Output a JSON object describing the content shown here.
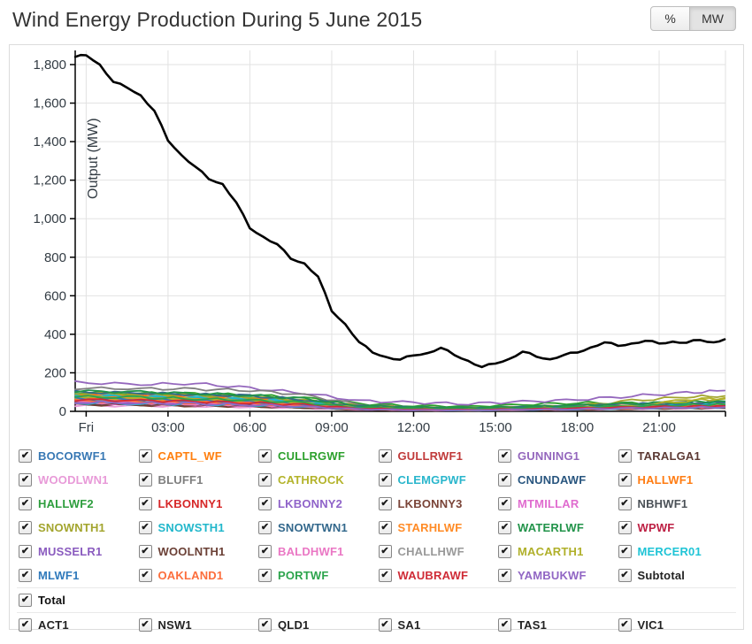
{
  "page": {
    "title": "Wind Energy Production During 5 June 2015"
  },
  "unit_toggle": {
    "percent_label": "%",
    "mw_label": "MW",
    "active": "MW"
  },
  "chart_data": {
    "type": "line",
    "title": "Wind Energy Production During 5 June 2015",
    "xlabel": "",
    "ylabel": "Output (MW)",
    "ylim": [
      0,
      1880
    ],
    "x_domain_hours": [
      -0.4,
      23.43
    ],
    "yticks": [
      0,
      200,
      400,
      600,
      800,
      1000,
      1200,
      1400,
      1600,
      1800
    ],
    "ytick_labels": [
      "0",
      "200",
      "400",
      "600",
      "800",
      "1,000",
      "1,200",
      "1,400",
      "1,600",
      "1,800"
    ],
    "xtick_hours": [
      0,
      3,
      6,
      9,
      12,
      15,
      18,
      21
    ],
    "xtick_labels": [
      "Fri",
      "03:00",
      "06:00",
      "09:00",
      "12:00",
      "15:00",
      "18:00",
      "21:00"
    ],
    "grid": true,
    "legend_position": "bottom",
    "total": {
      "name": "Total",
      "color": "#000000",
      "t": [
        -0.4,
        0,
        0.5,
        1,
        1.5,
        2,
        2.5,
        3,
        3.5,
        4,
        4.5,
        5,
        5.5,
        6,
        6.5,
        7,
        7.5,
        8,
        8.5,
        9,
        9.5,
        10,
        10.5,
        11,
        11.5,
        12,
        12.5,
        13,
        13.5,
        14,
        14.5,
        15,
        15.5,
        16,
        16.5,
        17,
        17.5,
        18,
        18.5,
        19,
        19.5,
        20,
        20.5,
        21,
        21.5,
        22,
        22.5,
        23,
        23.4
      ],
      "values": [
        1840,
        1848,
        1800,
        1710,
        1680,
        1640,
        1560,
        1405,
        1330,
        1270,
        1205,
        1180,
        1085,
        950,
        905,
        868,
        792,
        768,
        700,
        520,
        452,
        360,
        305,
        282,
        268,
        290,
        302,
        330,
        292,
        262,
        230,
        248,
        272,
        310,
        284,
        270,
        292,
        305,
        332,
        358,
        340,
        352,
        366,
        352,
        362,
        356,
        370,
        358,
        374
      ]
    },
    "farm_sample_hours": [
      -0.4,
      2,
      4,
      6,
      8,
      10,
      12,
      14,
      16,
      18,
      20,
      22,
      23.4
    ],
    "farms": [
      {
        "name": "BOCORWF1",
        "color": "#3878b4",
        "values": [
          48,
          44,
          40,
          36,
          30,
          12,
          8,
          6,
          10,
          14,
          18,
          22,
          24
        ]
      },
      {
        "name": "CAPTL_WF",
        "color": "#ff7f0e",
        "values": [
          92,
          86,
          78,
          70,
          50,
          20,
          12,
          10,
          14,
          18,
          24,
          30,
          32
        ]
      },
      {
        "name": "CULLRGWF",
        "color": "#2ca02c",
        "values": [
          98,
          95,
          90,
          85,
          70,
          40,
          30,
          25,
          35,
          45,
          40,
          35,
          30
        ]
      },
      {
        "name": "GULLRWF1",
        "color": "#c03a3a",
        "values": [
          75,
          70,
          60,
          55,
          40,
          15,
          10,
          8,
          12,
          16,
          20,
          26,
          28
        ]
      },
      {
        "name": "GUNNING1",
        "color": "#9467bd",
        "values": [
          150,
          140,
          145,
          120,
          95,
          55,
          45,
          40,
          50,
          60,
          80,
          95,
          108
        ]
      },
      {
        "name": "TARALGA1",
        "color": "#5c3a34",
        "values": [
          40,
          38,
          35,
          30,
          22,
          10,
          6,
          5,
          8,
          10,
          14,
          18,
          20
        ]
      },
      {
        "name": "WOODLWN1",
        "color": "#e89ad8",
        "values": [
          30,
          28,
          26,
          22,
          16,
          8,
          5,
          4,
          6,
          8,
          12,
          15,
          16
        ]
      },
      {
        "name": "BLUFF1",
        "color": "#7f7f7f",
        "values": [
          120,
          118,
          115,
          110,
          85,
          35,
          22,
          18,
          25,
          30,
          35,
          40,
          42
        ]
      },
      {
        "name": "CATHROCK",
        "color": "#b3b32a",
        "values": [
          65,
          60,
          55,
          50,
          40,
          18,
          12,
          10,
          15,
          20,
          28,
          60,
          70
        ]
      },
      {
        "name": "CLEMGPWF",
        "color": "#29b6cc",
        "values": [
          88,
          82,
          75,
          68,
          52,
          25,
          18,
          15,
          20,
          26,
          32,
          38,
          40
        ]
      },
      {
        "name": "CNUNDAWF",
        "color": "#29567f",
        "values": [
          55,
          50,
          46,
          40,
          30,
          14,
          9,
          7,
          11,
          15,
          19,
          23,
          25
        ]
      },
      {
        "name": "HALLWF1",
        "color": "#ff7c12",
        "values": [
          85,
          80,
          72,
          65,
          48,
          22,
          15,
          12,
          17,
          22,
          28,
          34,
          36
        ]
      },
      {
        "name": "HALLWF2",
        "color": "#2e9e3e",
        "values": [
          70,
          66,
          60,
          54,
          42,
          18,
          12,
          10,
          14,
          19,
          24,
          30,
          32
        ]
      },
      {
        "name": "LKBONNY1",
        "color": "#d62728",
        "values": [
          62,
          58,
          52,
          46,
          34,
          15,
          10,
          8,
          12,
          16,
          21,
          26,
          28
        ]
      },
      {
        "name": "LKBONNY2",
        "color": "#8f63c9",
        "values": [
          58,
          54,
          48,
          42,
          32,
          14,
          9,
          7,
          11,
          15,
          20,
          25,
          27
        ]
      },
      {
        "name": "LKBONNY3",
        "color": "#7a4438",
        "values": [
          35,
          32,
          29,
          25,
          18,
          8,
          5,
          4,
          6,
          9,
          12,
          15,
          16
        ]
      },
      {
        "name": "MTMILLAR",
        "color": "#e06ccf",
        "values": [
          42,
          39,
          35,
          30,
          22,
          10,
          6,
          5,
          8,
          11,
          15,
          19,
          20
        ]
      },
      {
        "name": "NBHWF1",
        "color": "#4c5258",
        "values": [
          50,
          47,
          42,
          37,
          28,
          12,
          8,
          6,
          10,
          13,
          17,
          21,
          23
        ]
      },
      {
        "name": "SNOWNTH1",
        "color": "#a3a52e",
        "values": [
          95,
          90,
          84,
          76,
          58,
          28,
          20,
          16,
          22,
          30,
          55,
          75,
          80
        ]
      },
      {
        "name": "SNOWSTH1",
        "color": "#21b7cb",
        "values": [
          80,
          75,
          68,
          60,
          45,
          20,
          14,
          11,
          16,
          21,
          27,
          33,
          35
        ]
      },
      {
        "name": "SNOWTWN1",
        "color": "#33688c",
        "values": [
          100,
          95,
          88,
          80,
          60,
          28,
          20,
          16,
          22,
          28,
          36,
          44,
          47
        ]
      },
      {
        "name": "STARHLWF",
        "color": "#ff8b26",
        "values": [
          68,
          64,
          58,
          50,
          38,
          16,
          11,
          9,
          13,
          18,
          23,
          28,
          30
        ]
      },
      {
        "name": "WATERLWF",
        "color": "#22934a",
        "values": [
          105,
          100,
          92,
          84,
          64,
          30,
          22,
          18,
          24,
          32,
          40,
          48,
          52
        ]
      },
      {
        "name": "WPWF",
        "color": "#bd2044",
        "values": [
          45,
          42,
          38,
          33,
          25,
          11,
          7,
          6,
          9,
          12,
          16,
          20,
          22
        ]
      },
      {
        "name": "MUSSELR1",
        "color": "#8a5bbf",
        "values": [
          52,
          48,
          44,
          38,
          28,
          13,
          8,
          7,
          10,
          14,
          18,
          23,
          25
        ]
      },
      {
        "name": "WOOLNTH1",
        "color": "#6b4036",
        "values": [
          38,
          35,
          32,
          28,
          20,
          9,
          6,
          5,
          7,
          10,
          13,
          17,
          18
        ]
      },
      {
        "name": "BALDHWF1",
        "color": "#ea77c4",
        "values": [
          48,
          45,
          40,
          35,
          26,
          12,
          8,
          6,
          9,
          13,
          17,
          21,
          23
        ]
      },
      {
        "name": "CHALLHWF",
        "color": "#999999",
        "values": [
          58,
          54,
          49,
          43,
          32,
          14,
          9,
          8,
          11,
          15,
          20,
          25,
          27
        ]
      },
      {
        "name": "MACARTH1",
        "color": "#b0b02a",
        "values": [
          72,
          68,
          62,
          55,
          42,
          19,
          13,
          10,
          15,
          20,
          26,
          55,
          65
        ]
      },
      {
        "name": "MERCER01",
        "color": "#1fc4d6",
        "values": [
          44,
          41,
          37,
          32,
          24,
          11,
          7,
          5,
          8,
          11,
          15,
          19,
          21
        ]
      },
      {
        "name": "MLWF1",
        "color": "#2f79bb",
        "values": [
          66,
          62,
          56,
          50,
          37,
          17,
          11,
          9,
          13,
          18,
          23,
          29,
          31
        ]
      },
      {
        "name": "OAKLAND1",
        "color": "#fc6e3c",
        "values": [
          54,
          50,
          46,
          40,
          30,
          13,
          9,
          7,
          10,
          14,
          19,
          24,
          26
        ]
      },
      {
        "name": "PORTWF",
        "color": "#2ca44c",
        "values": [
          76,
          72,
          65,
          58,
          44,
          20,
          14,
          11,
          16,
          21,
          27,
          33,
          35
        ]
      },
      {
        "name": "WAUBRAWF",
        "color": "#cf2b36",
        "values": [
          60,
          56,
          51,
          45,
          33,
          15,
          10,
          8,
          12,
          16,
          21,
          26,
          28
        ]
      },
      {
        "name": "YAMBUKWF",
        "color": "#9166c4",
        "values": [
          46,
          43,
          39,
          34,
          25,
          11,
          7,
          6,
          9,
          12,
          16,
          20,
          22
        ]
      }
    ]
  },
  "legend": {
    "all_checked": true,
    "subtotal": {
      "label": "Subtotal",
      "color": "#222222"
    },
    "total": {
      "label": "Total",
      "color": "#111111"
    },
    "regions": [
      {
        "label": "ACT1",
        "color": "#222222"
      },
      {
        "label": "NSW1",
        "color": "#222222"
      },
      {
        "label": "QLD1",
        "color": "#222222"
      },
      {
        "label": "SA1",
        "color": "#222222"
      },
      {
        "label": "TAS1",
        "color": "#222222"
      },
      {
        "label": "VIC1",
        "color": "#222222"
      }
    ]
  },
  "colors": {
    "axis_text": "#333c44",
    "grid": "#e2e2e2",
    "panel_border": "#dcdcdc"
  }
}
